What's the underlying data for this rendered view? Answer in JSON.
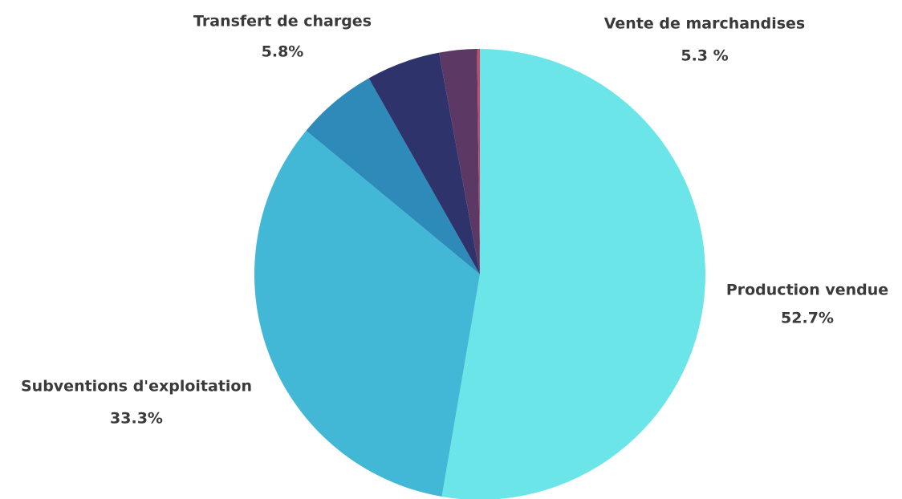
{
  "chart_data": {
    "type": "pie",
    "categories": [
      "Production vendue",
      "Subventions d'exploitation",
      "Transfert de charges",
      "Vente de marchandises",
      null,
      null
    ],
    "values": [
      52.7,
      33.3,
      5.8,
      5.3,
      2.7,
      0.2
    ],
    "value_labels": [
      "52.7%",
      "33.3%",
      "5.8%",
      "5.3 %",
      null,
      null
    ],
    "colors": [
      "#6ce5e8",
      "#43b7d6",
      "#2e8ab9",
      "#2f336b",
      "#5c3965",
      "#c24d6a"
    ]
  }
}
